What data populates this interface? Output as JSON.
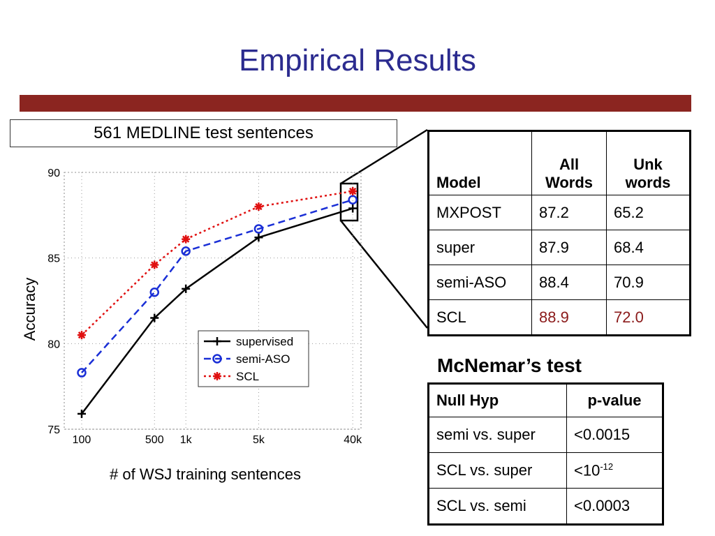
{
  "slide": {
    "title": "Empirical Results",
    "caption": "561 MEDLINE test sentences",
    "accent_color": "#8b2520",
    "title_color": "#2b2b8f"
  },
  "chart_data": {
    "type": "line",
    "x_scale": "log",
    "x": [
      100,
      500,
      1000,
      5000,
      40000
    ],
    "x_tick_labels": [
      "100",
      "500",
      "1k",
      "5k",
      "40k"
    ],
    "xlabel": "# of WSJ training sentences",
    "ylabel": "Accuracy",
    "ylim": [
      75,
      90
    ],
    "y_ticks": [
      75,
      80,
      85,
      90
    ],
    "grid": "dotted",
    "legend_position": "lower-right",
    "series": [
      {
        "name": "supervised",
        "color": "#000000",
        "marker": "plus",
        "dash": "solid",
        "values": [
          75.9,
          81.5,
          83.2,
          86.2,
          87.9
        ]
      },
      {
        "name": "semi-ASO",
        "color": "#1a2fd6",
        "marker": "circle",
        "dash": "dashed",
        "values": [
          78.3,
          83.0,
          85.4,
          86.7,
          88.4
        ]
      },
      {
        "name": "SCL",
        "color": "#e01010",
        "marker": "star",
        "dash": "dotted",
        "values": [
          80.5,
          84.6,
          86.1,
          88.0,
          88.9
        ]
      }
    ]
  },
  "results_table": {
    "headers": [
      "Model",
      "All Words",
      "Unk words"
    ],
    "rows": [
      [
        "MXPOST",
        "87.2",
        "65.2"
      ],
      [
        "super",
        "87.9",
        "68.4"
      ],
      [
        "semi-ASO",
        "88.4",
        "70.9"
      ],
      [
        "SCL",
        "88.9",
        "72.0"
      ]
    ]
  },
  "mcnemar": {
    "title": "McNemar’s test",
    "headers": [
      "Null Hyp",
      "p-value"
    ],
    "rows": [
      {
        "hyp": "semi vs. super",
        "p": "<0.0015"
      },
      {
        "hyp": "SCL vs. super",
        "p": "<10",
        "p_exp": "-12"
      },
      {
        "hyp": "SCL vs. semi",
        "p": "<0.0003"
      }
    ]
  }
}
